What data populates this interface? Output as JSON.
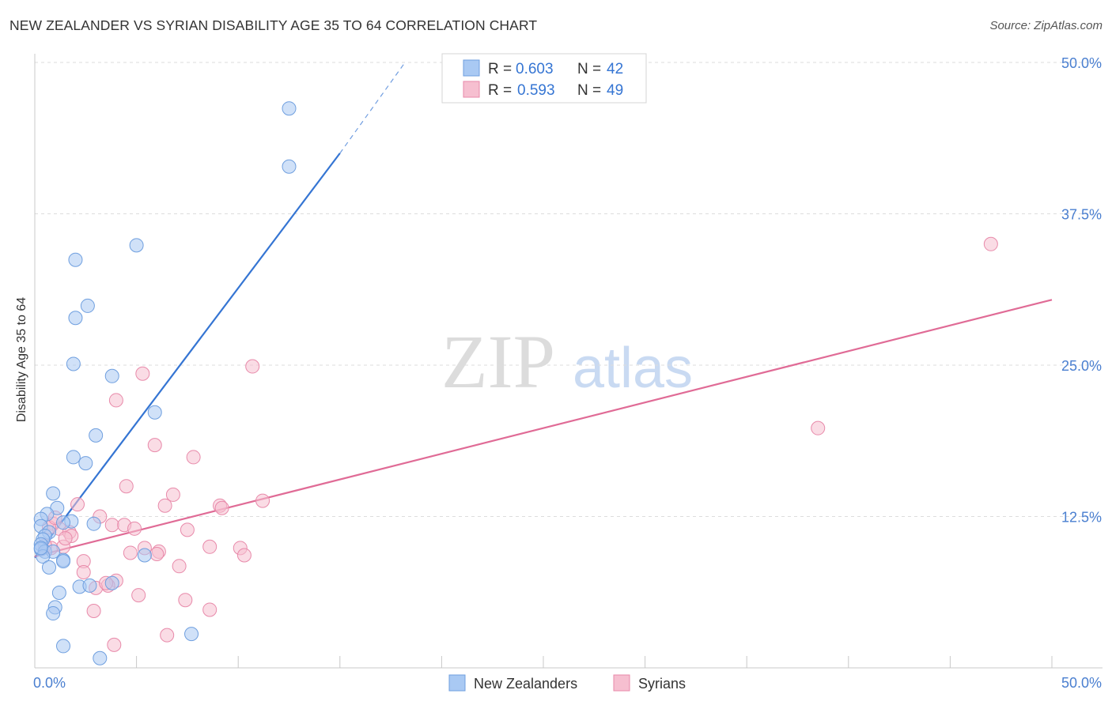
{
  "header": {
    "title": "NEW ZEALANDER VS SYRIAN DISABILITY AGE 35 TO 64 CORRELATION CHART",
    "source": "Source: ZipAtlas.com"
  },
  "watermark": {
    "zip": "ZIP",
    "atlas": "atlas"
  },
  "colors": {
    "blue_fill": "#a9c9f3",
    "blue_stroke": "#6f9fdf",
    "blue_line": "#3575d3",
    "pink_fill": "#f6bfd0",
    "pink_stroke": "#e88aaa",
    "pink_line": "#e06b96",
    "axis_label": "#4a7fd0",
    "grid": "#dddddd"
  },
  "stats": {
    "nz": {
      "r_label": "R =",
      "r_value": "0.603",
      "n_label": "N =",
      "n_value": "42"
    },
    "sy": {
      "r_label": "R =",
      "r_value": "0.593",
      "n_label": "N =",
      "n_value": "49"
    }
  },
  "chart_data": {
    "type": "scatter",
    "title": "NEW ZEALANDER VS SYRIAN DISABILITY AGE 35 TO 64 CORRELATION CHART",
    "xlabel": "",
    "ylabel": "Disability Age 35 to 64",
    "xlim": [
      0,
      50
    ],
    "ylim": [
      0,
      50
    ],
    "x_tick_labels": [
      "0.0%",
      "50.0%"
    ],
    "y_ticks": [
      12.5,
      25.0,
      37.5,
      50.0
    ],
    "y_tick_labels": [
      "12.5%",
      "25.0%",
      "37.5%",
      "50.0%"
    ],
    "legend": [
      "New Zealanders",
      "Syrians"
    ],
    "series": [
      {
        "name": "New Zealanders",
        "color": "#a9c9f3",
        "trend": {
          "x": [
            0.0,
            15.0
          ],
          "y": [
            9.1,
            42.5
          ],
          "dashed_to": [
            18.2,
            50.0
          ]
        },
        "points": [
          [
            12.5,
            46.2
          ],
          [
            12.5,
            41.4
          ],
          [
            5.0,
            34.9
          ],
          [
            2.0,
            33.7
          ],
          [
            2.6,
            29.9
          ],
          [
            2.0,
            28.9
          ],
          [
            1.9,
            25.1
          ],
          [
            3.8,
            24.1
          ],
          [
            5.9,
            21.1
          ],
          [
            3.0,
            19.2
          ],
          [
            1.9,
            17.4
          ],
          [
            2.5,
            16.9
          ],
          [
            0.9,
            14.4
          ],
          [
            1.1,
            13.2
          ],
          [
            0.6,
            12.7
          ],
          [
            1.8,
            12.1
          ],
          [
            2.9,
            11.9
          ],
          [
            0.3,
            12.3
          ],
          [
            0.3,
            11.7
          ],
          [
            0.7,
            11.2
          ],
          [
            0.5,
            10.9
          ],
          [
            0.4,
            10.6
          ],
          [
            0.3,
            10.2
          ],
          [
            0.3,
            9.8
          ],
          [
            0.5,
            9.6
          ],
          [
            0.9,
            9.6
          ],
          [
            1.4,
            12.0
          ],
          [
            0.4,
            9.2
          ],
          [
            1.4,
            8.9
          ],
          [
            1.4,
            8.8
          ],
          [
            5.4,
            9.3
          ],
          [
            0.7,
            8.3
          ],
          [
            2.2,
            6.7
          ],
          [
            2.7,
            6.8
          ],
          [
            3.8,
            7.0
          ],
          [
            1.2,
            6.2
          ],
          [
            1.0,
            5.0
          ],
          [
            0.9,
            4.5
          ],
          [
            7.7,
            2.8
          ],
          [
            1.4,
            1.8
          ],
          [
            3.2,
            0.8
          ],
          [
            0.3,
            9.9
          ]
        ]
      },
      {
        "name": "Syrians",
        "color": "#f6bfd0",
        "trend": {
          "x": [
            0.0,
            50.0
          ],
          "y": [
            9.2,
            30.4
          ]
        },
        "points": [
          [
            47.0,
            35.0
          ],
          [
            38.5,
            19.8
          ],
          [
            10.7,
            24.9
          ],
          [
            5.3,
            24.3
          ],
          [
            4.0,
            22.1
          ],
          [
            5.9,
            18.4
          ],
          [
            7.8,
            17.4
          ],
          [
            4.5,
            15.0
          ],
          [
            6.8,
            14.3
          ],
          [
            11.2,
            13.8
          ],
          [
            9.1,
            13.4
          ],
          [
            9.2,
            13.2
          ],
          [
            2.1,
            13.5
          ],
          [
            6.4,
            13.4
          ],
          [
            3.2,
            12.5
          ],
          [
            3.8,
            11.8
          ],
          [
            4.4,
            11.8
          ],
          [
            4.9,
            11.5
          ],
          [
            7.5,
            11.4
          ],
          [
            0.9,
            11.9
          ],
          [
            1.2,
            11.5
          ],
          [
            1.7,
            11.2
          ],
          [
            1.8,
            10.9
          ],
          [
            1.4,
            10.0
          ],
          [
            0.8,
            9.9
          ],
          [
            0.5,
            10.1
          ],
          [
            8.6,
            10.0
          ],
          [
            10.1,
            9.9
          ],
          [
            5.4,
            9.9
          ],
          [
            6.1,
            9.6
          ],
          [
            4.7,
            9.5
          ],
          [
            10.3,
            9.3
          ],
          [
            2.4,
            8.8
          ],
          [
            7.1,
            8.4
          ],
          [
            2.4,
            7.9
          ],
          [
            4.0,
            7.2
          ],
          [
            3.6,
            6.8
          ],
          [
            3.0,
            6.6
          ],
          [
            5.1,
            6.0
          ],
          [
            7.4,
            5.6
          ],
          [
            8.6,
            4.8
          ],
          [
            2.9,
            4.7
          ],
          [
            6.5,
            2.7
          ],
          [
            3.9,
            1.9
          ],
          [
            0.7,
            11.6
          ],
          [
            1.0,
            12.4
          ],
          [
            6.0,
            9.4
          ],
          [
            1.5,
            10.7
          ],
          [
            3.5,
            7.0
          ]
        ]
      }
    ]
  }
}
